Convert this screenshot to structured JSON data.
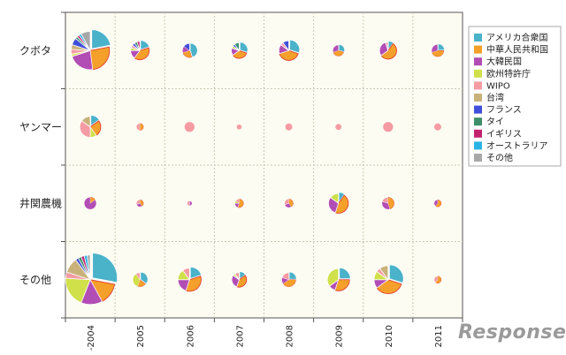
{
  "chart_data": {
    "type": "pie-grid",
    "title": "",
    "rows": [
      "クボタ",
      "ヤンマー",
      "井関農機",
      "その他"
    ],
    "columns": [
      "-2004",
      "2005",
      "2006",
      "2007",
      "2008",
      "2009",
      "2010",
      "2011"
    ],
    "legend": [
      {
        "name": "アメリカ合衆国",
        "color": "#4ab2c9"
      },
      {
        "name": "中華人民共和国",
        "color": "#f4a02a"
      },
      {
        "name": "大韓民国",
        "color": "#b24db5"
      },
      {
        "name": "欧州特許庁",
        "color": "#cfe04a"
      },
      {
        "name": "WIPO",
        "color": "#f59ba3"
      },
      {
        "name": "台湾",
        "color": "#c9b27a"
      },
      {
        "name": "フランス",
        "color": "#3f4fd9"
      },
      {
        "name": "タイ",
        "color": "#3c8f6a"
      },
      {
        "name": "イギリス",
        "color": "#c3226f"
      },
      {
        "name": "オーストラリア",
        "color": "#2ab4e6"
      },
      {
        "name": "その他",
        "color": "#a8a8a8"
      }
    ],
    "legend_position": "right",
    "cells": [
      [
        {
          "total": 60,
          "shares": [
            0.22,
            0.26,
            0.22,
            0.02,
            0.04,
            0.04,
            0.06,
            0.02,
            0.02,
            0.02,
            0.08
          ]
        },
        {
          "total": 14,
          "shares": [
            0.2,
            0.4,
            0.15,
            0.05,
            0.05,
            0,
            0.05,
            0.05,
            0.05,
            0,
            0
          ]
        },
        {
          "total": 8,
          "shares": [
            0.45,
            0.25,
            0.15,
            0,
            0,
            0,
            0.15,
            0,
            0,
            0,
            0
          ]
        },
        {
          "total": 10,
          "shares": [
            0.3,
            0.35,
            0.15,
            0.05,
            0,
            0,
            0.05,
            0.1,
            0,
            0,
            0
          ]
        },
        {
          "total": 16,
          "shares": [
            0.3,
            0.4,
            0.15,
            0,
            0.05,
            0,
            0.1,
            0,
            0,
            0,
            0
          ]
        },
        {
          "total": 5,
          "shares": [
            0.3,
            0.4,
            0.3,
            0,
            0,
            0,
            0,
            0,
            0,
            0,
            0
          ]
        },
        {
          "total": 12,
          "shares": [
            0.1,
            0.55,
            0.3,
            0,
            0.05,
            0,
            0,
            0,
            0,
            0,
            0
          ]
        },
        {
          "total": 6,
          "shares": [
            0.25,
            0.45,
            0.3,
            0,
            0,
            0,
            0,
            0,
            0,
            0,
            0
          ]
        }
      ],
      [
        {
          "total": 18,
          "shares": [
            0.15,
            0.25,
            0,
            0.1,
            0.35,
            0.15,
            0,
            0,
            0,
            0,
            0
          ]
        },
        {
          "total": 2,
          "shares": [
            0,
            0.5,
            0,
            0,
            0.5,
            0,
            0,
            0,
            0,
            0,
            0
          ]
        },
        {
          "total": 4,
          "shares": [
            0,
            0,
            0,
            0,
            1,
            0,
            0,
            0,
            0,
            0,
            0
          ]
        },
        {
          "total": 1,
          "shares": [
            0,
            0,
            0,
            0,
            1,
            0,
            0,
            0,
            0,
            0,
            0
          ]
        },
        {
          "total": 2,
          "shares": [
            0,
            0,
            0,
            0,
            1,
            0,
            0,
            0,
            0,
            0,
            0
          ]
        },
        {
          "total": 1.5,
          "shares": [
            0,
            0,
            0,
            0,
            1,
            0,
            0,
            0,
            0,
            0,
            0
          ]
        },
        {
          "total": 4,
          "shares": [
            0,
            0,
            0,
            0,
            1,
            0,
            0,
            0,
            0,
            0,
            0
          ]
        },
        {
          "total": 2,
          "shares": [
            0,
            0,
            0,
            0,
            1,
            0,
            0,
            0,
            0,
            0,
            0
          ]
        }
      ],
      [
        {
          "total": 6,
          "shares": [
            0,
            0.15,
            0.85,
            0,
            0,
            0,
            0,
            0,
            0,
            0,
            0
          ]
        },
        {
          "total": 2,
          "shares": [
            0,
            0.4,
            0.3,
            0,
            0.3,
            0,
            0,
            0,
            0,
            0,
            0
          ]
        },
        {
          "total": 1,
          "shares": [
            0,
            0,
            0.5,
            0,
            0.5,
            0,
            0,
            0,
            0,
            0,
            0
          ]
        },
        {
          "total": 3,
          "shares": [
            0,
            0.55,
            0.2,
            0.1,
            0.15,
            0,
            0,
            0,
            0,
            0,
            0
          ]
        },
        {
          "total": 3,
          "shares": [
            0,
            0.4,
            0.3,
            0,
            0.3,
            0,
            0,
            0,
            0,
            0,
            0
          ]
        },
        {
          "total": 16,
          "shares": [
            0.1,
            0.45,
            0.3,
            0.15,
            0,
            0,
            0,
            0,
            0,
            0,
            0
          ]
        },
        {
          "total": 6,
          "shares": [
            0,
            0.45,
            0.35,
            0,
            0.2,
            0,
            0,
            0,
            0,
            0,
            0
          ]
        },
        {
          "total": 2,
          "shares": [
            0,
            0.6,
            0.4,
            0,
            0,
            0,
            0,
            0,
            0,
            0,
            0
          ]
        }
      ],
      [
        {
          "total": 100,
          "shares": [
            0.28,
            0.14,
            0.14,
            0.2,
            0.04,
            0.1,
            0.02,
            0.02,
            0.02,
            0.02,
            0.02
          ]
        },
        {
          "total": 8,
          "shares": [
            0.35,
            0.2,
            0,
            0.35,
            0.1,
            0,
            0,
            0,
            0,
            0,
            0
          ]
        },
        {
          "total": 22,
          "shares": [
            0.2,
            0.35,
            0.2,
            0.15,
            0.1,
            0,
            0,
            0,
            0,
            0,
            0
          ]
        },
        {
          "total": 9,
          "shares": [
            0.15,
            0.4,
            0.3,
            0.05,
            0.1,
            0,
            0,
            0,
            0,
            0,
            0
          ]
        },
        {
          "total": 8,
          "shares": [
            0.25,
            0.4,
            0.15,
            0,
            0.2,
            0,
            0,
            0,
            0,
            0,
            0
          ]
        },
        {
          "total": 20,
          "shares": [
            0.25,
            0.3,
            0.1,
            0.35,
            0,
            0,
            0,
            0,
            0,
            0,
            0
          ]
        },
        {
          "total": 32,
          "shares": [
            0.3,
            0.35,
            0.1,
            0.1,
            0.05,
            0.1,
            0,
            0,
            0,
            0,
            0
          ]
        },
        {
          "total": 2,
          "shares": [
            0,
            0.6,
            0,
            0,
            0.4,
            0,
            0,
            0,
            0,
            0,
            0
          ]
        }
      ]
    ]
  },
  "watermark": "Response."
}
